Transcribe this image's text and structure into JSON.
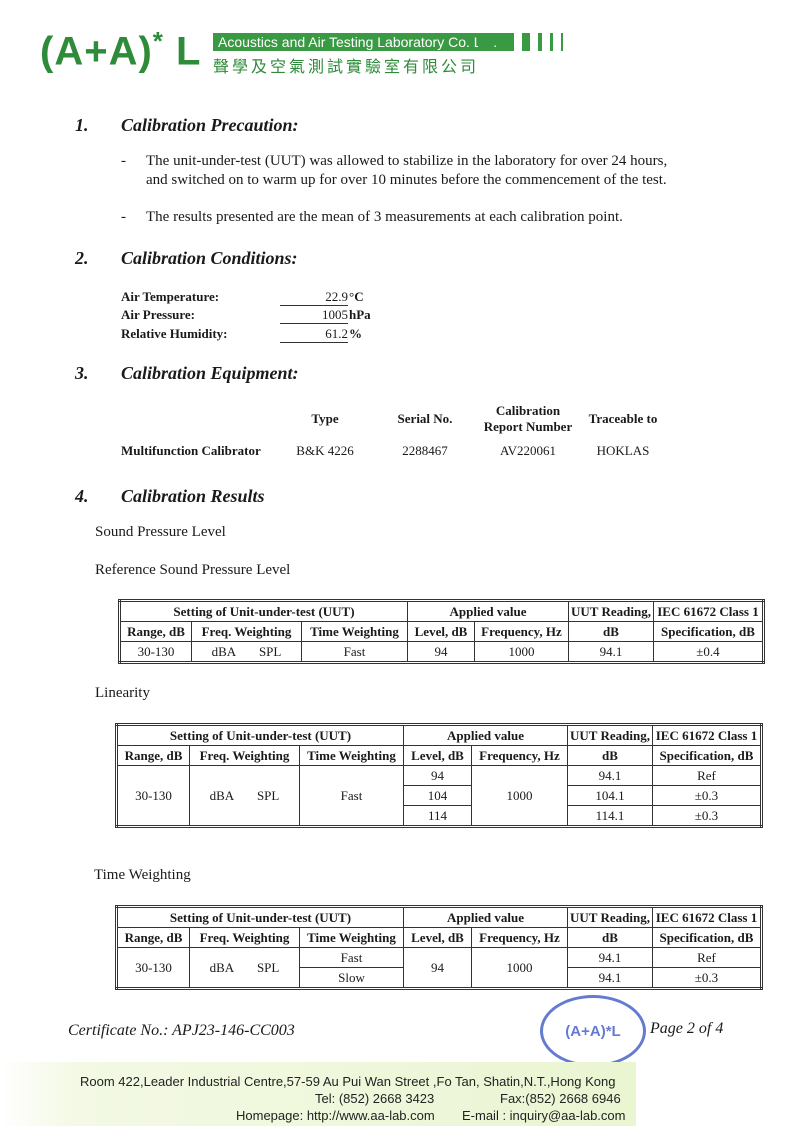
{
  "header": {
    "logo": "(A+A)*L",
    "company_en": "Acoustics and Air Testing Laboratory Co. Ltd.",
    "company_cn": "聲學及空氣測試實驗室有限公司"
  },
  "sec1": {
    "num": "1.",
    "title": "Calibration Precaution:",
    "bullets": [
      "The unit-under-test (UUT) was allowed to stabilize in the laboratory for over 24 hours,",
      "and switched on to warm up for over 10 minutes before the commencement of the test.",
      "The results presented are the mean of 3 measurements at each calibration point."
    ]
  },
  "sec2": {
    "num": "2.",
    "title": "Calibration Conditions:",
    "rows": [
      {
        "label": "Air Temperature:",
        "value": "22.9",
        "unit": "°C"
      },
      {
        "label": "Air Pressure:",
        "value": "1005",
        "unit": "hPa"
      },
      {
        "label": "Relative Humidity:",
        "value": "61.2",
        "unit": "%"
      }
    ]
  },
  "sec3": {
    "num": "3.",
    "title": "Calibration Equipment:",
    "headers": [
      "Type",
      "Serial No.",
      "Calibration",
      "Report Number",
      "Traceable to"
    ],
    "row": {
      "name": "Multifunction Calibrator",
      "type": "B&K 4226",
      "serial": "2288467",
      "report": "AV220061",
      "trace": "HOKLAS"
    }
  },
  "sec4": {
    "num": "4.",
    "title": "Calibration Results",
    "sub1": "Sound Pressure Level",
    "sub2": "Reference Sound Pressure Level",
    "sub3": "Linearity",
    "sub4": "Time Weighting"
  },
  "table_headers": {
    "setting": "Setting of Unit-under-test (UUT)",
    "applied": "Applied value",
    "uut1": "UUT Reading,",
    "uut2": "dB",
    "iec1": "IEC 61672 Class 1",
    "iec2": "Specification, dB",
    "range": "Range, dB",
    "freqw": "Freq. Weighting",
    "timew": "Time Weighting",
    "level": "Level, dB",
    "freqhz": "Frequency, Hz"
  },
  "ref_table": {
    "range": "30-130",
    "fw": "dBA",
    "mode": "SPL",
    "tw": "Fast",
    "level": "94",
    "freq": "1000",
    "reading": "94.1",
    "spec": "±0.4"
  },
  "lin_table": {
    "range": "30-130",
    "fw": "dBA",
    "mode": "SPL",
    "tw": "Fast",
    "freq": "1000",
    "rows": [
      {
        "level": "94",
        "reading": "94.1",
        "spec": "Ref"
      },
      {
        "level": "104",
        "reading": "104.1",
        "spec": "±0.3"
      },
      {
        "level": "114",
        "reading": "114.1",
        "spec": "±0.3"
      }
    ]
  },
  "tw_table": {
    "range": "30-130",
    "fw": "dBA",
    "mode": "SPL",
    "level": "94",
    "freq": "1000",
    "rows": [
      {
        "tw": "Fast",
        "reading": "94.1",
        "spec": "Ref"
      },
      {
        "tw": "Slow",
        "reading": "94.1",
        "spec": "±0.3"
      }
    ]
  },
  "footer": {
    "certificate": "Certificate No.: APJ23-146-CC003",
    "page": "Page 2 of 4",
    "stamp": "(A+A)*L",
    "address": "Room 422,Leader Industrial Centre,57-59 Au Pui Wan Street ,Fo Tan, Shatin,N.T.,Hong Kong",
    "tel": "Tel: (852) 2668 3423",
    "fax": "Fax:(852) 2668 6946",
    "homepage": "Homepage: http://www.aa-lab.com",
    "email": "E-mail : inquiry@aa-lab.com"
  }
}
